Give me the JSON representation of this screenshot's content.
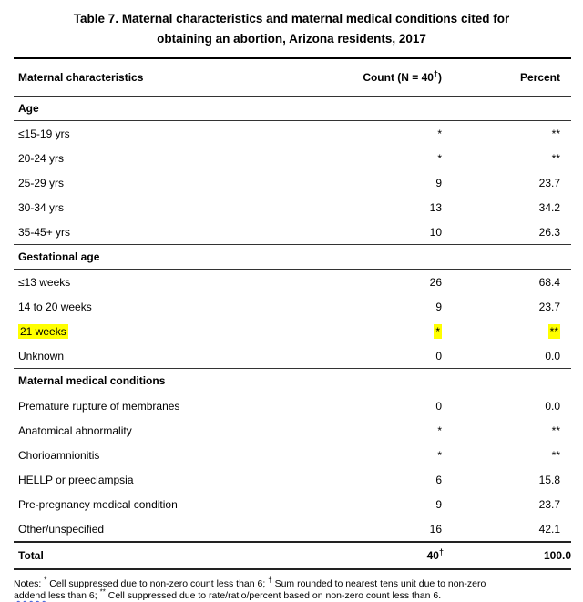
{
  "title": {
    "line1": "Table 7. Maternal characteristics and maternal medical conditions cited for",
    "line2": "obtaining an abortion, Arizona residents, 2017"
  },
  "highlight_color": "#ffff00",
  "table": {
    "columns": {
      "characteristics": "Maternal characteristics",
      "count_prefix": "Count (N = 40",
      "count_sup": "†",
      "count_suffix": ")",
      "percent": "Percent"
    },
    "sections": [
      {
        "header": "Age",
        "rows": [
          {
            "label": "≤15-19 yrs",
            "count": "*",
            "percent": "**",
            "highlighted": false
          },
          {
            "label": "20-24 yrs",
            "count": "*",
            "percent": "**",
            "highlighted": false
          },
          {
            "label": "25-29 yrs",
            "count": "9",
            "percent": "23.7",
            "highlighted": false
          },
          {
            "label": "30-34 yrs",
            "count": "13",
            "percent": "34.2",
            "highlighted": false
          },
          {
            "label": "35-45+ yrs",
            "count": "10",
            "percent": "26.3",
            "highlighted": false
          }
        ]
      },
      {
        "header": "Gestational age",
        "rows": [
          {
            "label": "≤13 weeks",
            "count": "26",
            "percent": "68.4",
            "highlighted": false
          },
          {
            "label": "14 to 20 weeks",
            "count": "9",
            "percent": "23.7",
            "highlighted": false
          },
          {
            "label": "21 weeks",
            "count": "*",
            "percent": "**",
            "highlighted": true
          },
          {
            "label": "Unknown",
            "count": "0",
            "percent": "0.0",
            "highlighted": false
          }
        ]
      },
      {
        "header": "Maternal medical conditions",
        "rows": [
          {
            "label": "Premature rupture of membranes",
            "count": "0",
            "percent": "0.0",
            "highlighted": false
          },
          {
            "label": "Anatomical abnormality",
            "count": "*",
            "percent": "**",
            "highlighted": false
          },
          {
            "label": "Chorioamnionitis",
            "count": "*",
            "percent": "**",
            "highlighted": false
          },
          {
            "label": "HELLP or preeclampsia",
            "count": "6",
            "percent": "15.8",
            "highlighted": false
          },
          {
            "label": "Pre-pregnancy medical condition",
            "count": "9",
            "percent": "23.7",
            "highlighted": false
          },
          {
            "label": "Other/unspecified",
            "count": "16",
            "percent": "42.1",
            "highlighted": false
          }
        ]
      }
    ],
    "total": {
      "label": "Total",
      "count_value": "40",
      "count_sup": "†",
      "percent": "100.0"
    }
  },
  "notes": {
    "segments": [
      {
        "text": "Notes: "
      },
      {
        "text": "*",
        "sup": true
      },
      {
        "text": " Cell suppressed due to non-zero count less than 6; "
      },
      {
        "text": "†",
        "sup": true
      },
      {
        "text": " Sum rounded to nearest tens unit due to non-zero"
      },
      {
        "br": true
      },
      {
        "text": "addend",
        "squiggle": true
      },
      {
        "text": " less than 6; "
      },
      {
        "text": "**",
        "sup": true
      },
      {
        "text": " Cell suppressed due to rate/ratio/percent based on non-zero count less than 6."
      }
    ]
  }
}
